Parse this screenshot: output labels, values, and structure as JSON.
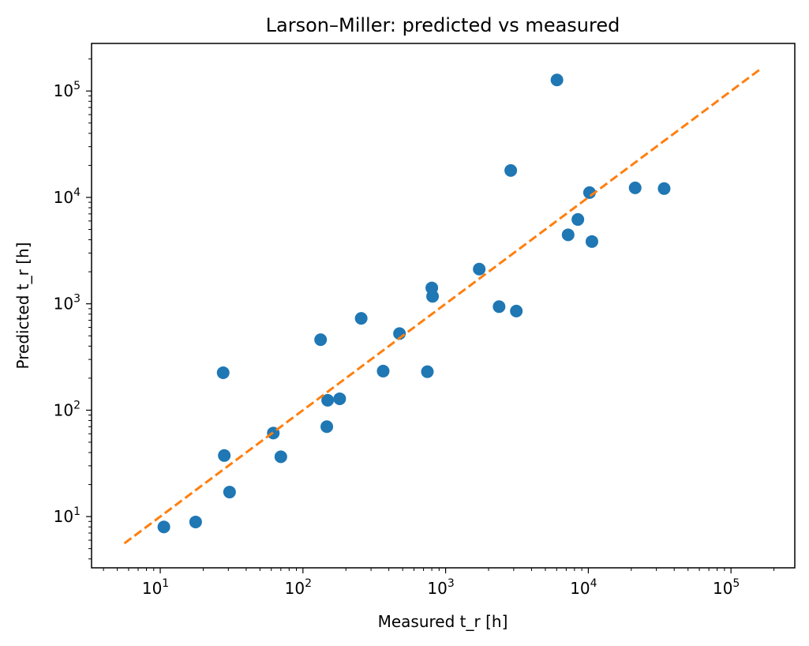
{
  "chart_data": {
    "type": "scatter",
    "title": "Larson–Miller: predicted vs measured",
    "xlabel": "Measured t_r [h]",
    "ylabel": "Predicted t_r [h]",
    "xscale": "log",
    "yscale": "log",
    "xlim": [
      3.3,
      280000
    ],
    "ylim": [
      3.3,
      280000
    ],
    "x_ticks": [
      {
        "base": "10",
        "exp": "1",
        "value": 10
      },
      {
        "base": "10",
        "exp": "2",
        "value": 100
      },
      {
        "base": "10",
        "exp": "3",
        "value": 1000
      },
      {
        "base": "10",
        "exp": "4",
        "value": 10000
      },
      {
        "base": "10",
        "exp": "5",
        "value": 100000
      }
    ],
    "y_ticks": [
      {
        "base": "10",
        "exp": "1",
        "value": 10
      },
      {
        "base": "10",
        "exp": "2",
        "value": 100
      },
      {
        "base": "10",
        "exp": "3",
        "value": 1000
      },
      {
        "base": "10",
        "exp": "4",
        "value": 10000
      },
      {
        "base": "10",
        "exp": "5",
        "value": 100000
      }
    ],
    "grid": false,
    "series": [
      {
        "marker": "circle",
        "color": "#1f77b4",
        "points": [
          {
            "x": 10.6,
            "y": 8
          },
          {
            "x": 17.7,
            "y": 8.9
          },
          {
            "x": 27.6,
            "y": 225
          },
          {
            "x": 28.1,
            "y": 37.5
          },
          {
            "x": 30.6,
            "y": 17
          },
          {
            "x": 62,
            "y": 61
          },
          {
            "x": 70,
            "y": 36.5
          },
          {
            "x": 133,
            "y": 460
          },
          {
            "x": 147,
            "y": 70
          },
          {
            "x": 149,
            "y": 124
          },
          {
            "x": 181,
            "y": 128
          },
          {
            "x": 256,
            "y": 730
          },
          {
            "x": 365,
            "y": 233
          },
          {
            "x": 475,
            "y": 525
          },
          {
            "x": 745,
            "y": 230
          },
          {
            "x": 800,
            "y": 1410
          },
          {
            "x": 810,
            "y": 1175
          },
          {
            "x": 1720,
            "y": 2120
          },
          {
            "x": 2370,
            "y": 940
          },
          {
            "x": 2860,
            "y": 17900
          },
          {
            "x": 3130,
            "y": 855
          },
          {
            "x": 6030,
            "y": 127000
          },
          {
            "x": 7220,
            "y": 4450
          },
          {
            "x": 8450,
            "y": 6200
          },
          {
            "x": 10200,
            "y": 11100
          },
          {
            "x": 10600,
            "y": 3850
          },
          {
            "x": 21300,
            "y": 12300
          },
          {
            "x": 34000,
            "y": 12100
          }
        ]
      },
      {
        "line_style": "dashed",
        "color": "#ff7f0e",
        "points": [
          {
            "x": 5.6,
            "y": 5.6
          },
          {
            "x": 160000,
            "y": 160000
          }
        ]
      }
    ]
  }
}
